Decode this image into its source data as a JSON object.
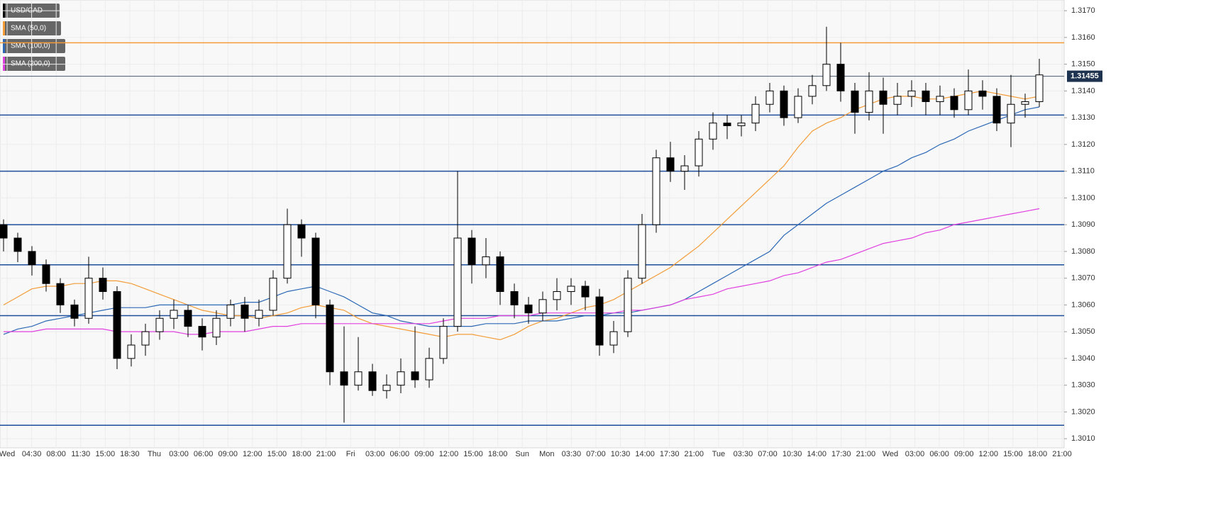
{
  "chart_data": {
    "type": "candlestick",
    "series": [
      {
        "name": "USD/CAD",
        "color": "#000000",
        "open": [
          1.309,
          1.3085,
          1.308,
          1.3075,
          1.3068,
          1.306,
          1.3055,
          1.307,
          1.3065,
          1.304,
          1.3045,
          1.305,
          1.3055,
          1.3058,
          1.3052,
          1.3048,
          1.3055,
          1.306,
          1.3055,
          1.3058,
          1.307,
          1.309,
          1.3085,
          1.306,
          1.3035,
          1.303,
          1.3035,
          1.3028,
          1.303,
          1.3035,
          1.3032,
          1.304,
          1.3052,
          1.3085,
          1.3075,
          1.3078,
          1.3065,
          1.306,
          1.3057,
          1.3062,
          1.3065,
          1.3067,
          1.3063,
          1.3045,
          1.305,
          1.307,
          1.309,
          1.3115,
          1.311,
          1.3112,
          1.3122,
          1.3128,
          1.3127,
          1.3128,
          1.3135,
          1.314,
          1.313,
          1.3138,
          1.3142,
          1.315,
          1.314,
          1.3132,
          1.314,
          1.3135,
          1.3138,
          1.314,
          1.3136,
          1.3138,
          1.3133,
          1.314,
          1.3138,
          1.3128,
          1.3135,
          1.3136
        ],
        "high": [
          1.3092,
          1.3087,
          1.3082,
          1.3077,
          1.307,
          1.3062,
          1.3078,
          1.3074,
          1.3067,
          1.3049,
          1.3053,
          1.3058,
          1.3062,
          1.306,
          1.3055,
          1.3058,
          1.3062,
          1.3063,
          1.3062,
          1.3073,
          1.3096,
          1.3092,
          1.3087,
          1.3062,
          1.3052,
          1.3048,
          1.3038,
          1.3034,
          1.304,
          1.3052,
          1.3044,
          1.3055,
          1.311,
          1.3088,
          1.3085,
          1.308,
          1.3068,
          1.3063,
          1.3065,
          1.307,
          1.307,
          1.3069,
          1.3066,
          1.3054,
          1.3073,
          1.3094,
          1.3118,
          1.3121,
          1.3116,
          1.3125,
          1.3132,
          1.3131,
          1.3131,
          1.3138,
          1.3143,
          1.3142,
          1.3141,
          1.3146,
          1.3164,
          1.3158,
          1.3143,
          1.3147,
          1.3145,
          1.3143,
          1.3144,
          1.3143,
          1.3142,
          1.3141,
          1.3148,
          1.3144,
          1.3141,
          1.3146,
          1.3139,
          1.3152
        ],
        "low": [
          1.308,
          1.3076,
          1.3071,
          1.3065,
          1.3057,
          1.3052,
          1.3053,
          1.3062,
          1.3036,
          1.3037,
          1.3041,
          1.3047,
          1.3051,
          1.3048,
          1.3043,
          1.3045,
          1.3052,
          1.305,
          1.3052,
          1.3056,
          1.3068,
          1.3078,
          1.3055,
          1.303,
          1.3016,
          1.3028,
          1.3026,
          1.3025,
          1.3027,
          1.3029,
          1.3029,
          1.3038,
          1.305,
          1.3068,
          1.307,
          1.306,
          1.3055,
          1.3053,
          1.3054,
          1.3058,
          1.306,
          1.3058,
          1.3041,
          1.3042,
          1.3048,
          1.3068,
          1.3087,
          1.3106,
          1.3103,
          1.3108,
          1.3118,
          1.3122,
          1.3123,
          1.3125,
          1.3132,
          1.3127,
          1.3128,
          1.3135,
          1.314,
          1.3136,
          1.3124,
          1.3129,
          1.3124,
          1.3131,
          1.3134,
          1.3131,
          1.3131,
          1.313,
          1.3131,
          1.3133,
          1.3125,
          1.3119,
          1.313,
          1.3134
        ],
        "close": [
          1.3085,
          1.308,
          1.3075,
          1.3068,
          1.306,
          1.3055,
          1.307,
          1.3065,
          1.304,
          1.3045,
          1.305,
          1.3055,
          1.3058,
          1.3052,
          1.3048,
          1.3055,
          1.306,
          1.3055,
          1.3058,
          1.307,
          1.309,
          1.3085,
          1.306,
          1.3035,
          1.303,
          1.3035,
          1.3028,
          1.303,
          1.3035,
          1.3032,
          1.304,
          1.3052,
          1.3085,
          1.3075,
          1.3078,
          1.3065,
          1.306,
          1.3057,
          1.3062,
          1.3065,
          1.3067,
          1.3063,
          1.3045,
          1.305,
          1.307,
          1.309,
          1.3115,
          1.311,
          1.3112,
          1.3122,
          1.3128,
          1.3127,
          1.3128,
          1.3135,
          1.314,
          1.313,
          1.3138,
          1.3142,
          1.315,
          1.314,
          1.3132,
          1.314,
          1.3135,
          1.3138,
          1.314,
          1.3136,
          1.3138,
          1.3133,
          1.314,
          1.3138,
          1.3128,
          1.3135,
          1.3136,
          1.3146
        ]
      }
    ],
    "lines": [
      {
        "name": "SMA (50,0)",
        "color": "#f39c38",
        "values": [
          1.306,
          1.3063,
          1.3066,
          1.3067,
          1.3067,
          1.3068,
          1.3068,
          1.3069,
          1.3069,
          1.3068,
          1.3066,
          1.3064,
          1.3062,
          1.306,
          1.3058,
          1.3057,
          1.3056,
          1.3056,
          1.3055,
          1.3056,
          1.3057,
          1.3059,
          1.306,
          1.3059,
          1.3058,
          1.3055,
          1.3053,
          1.3052,
          1.3051,
          1.305,
          1.3049,
          1.3048,
          1.3049,
          1.3049,
          1.3048,
          1.3047,
          1.3049,
          1.3052,
          1.3054,
          1.3055,
          1.3057,
          1.3059,
          1.306,
          1.3062,
          1.3065,
          1.3068,
          1.3071,
          1.3074,
          1.3078,
          1.3082,
          1.3087,
          1.3092,
          1.3097,
          1.3102,
          1.3107,
          1.3112,
          1.3119,
          1.3125,
          1.3128,
          1.313,
          1.3133,
          1.3135,
          1.3137,
          1.3138,
          1.3138,
          1.3137,
          1.3137,
          1.3138,
          1.3139,
          1.314,
          1.3139,
          1.3138,
          1.3137,
          1.3138
        ]
      },
      {
        "name": "SMA (100,0)",
        "color": "#2c68b5",
        "values": [
          1.3049,
          1.3051,
          1.3052,
          1.3054,
          1.3055,
          1.3056,
          1.3057,
          1.3058,
          1.3059,
          1.3059,
          1.3059,
          1.306,
          1.306,
          1.306,
          1.306,
          1.306,
          1.306,
          1.3061,
          1.3061,
          1.3063,
          1.3065,
          1.3066,
          1.3067,
          1.3065,
          1.3063,
          1.306,
          1.3057,
          1.3056,
          1.3054,
          1.3053,
          1.3052,
          1.3052,
          1.3052,
          1.3052,
          1.3053,
          1.3053,
          1.3053,
          1.3054,
          1.3054,
          1.3054,
          1.3055,
          1.3056,
          1.3056,
          1.3057,
          1.3057,
          1.3058,
          1.3059,
          1.306,
          1.3062,
          1.3065,
          1.3068,
          1.3071,
          1.3074,
          1.3077,
          1.308,
          1.3086,
          1.309,
          1.3094,
          1.3098,
          1.3101,
          1.3104,
          1.3107,
          1.311,
          1.3112,
          1.3115,
          1.3117,
          1.312,
          1.3122,
          1.3125,
          1.3127,
          1.3129,
          1.3131,
          1.3133,
          1.3134
        ]
      },
      {
        "name": "SMA (200,0)",
        "color": "#e040e0",
        "values": [
          1.305,
          1.305,
          1.305,
          1.3051,
          1.3051,
          1.3051,
          1.3051,
          1.3051,
          1.305,
          1.305,
          1.305,
          1.305,
          1.305,
          1.3049,
          1.3049,
          1.305,
          1.305,
          1.305,
          1.3051,
          1.3052,
          1.3052,
          1.3053,
          1.3053,
          1.3053,
          1.3053,
          1.3053,
          1.3053,
          1.3053,
          1.3053,
          1.3053,
          1.3053,
          1.3054,
          1.3055,
          1.3055,
          1.3055,
          1.3056,
          1.3056,
          1.3056,
          1.3057,
          1.3057,
          1.3057,
          1.3057,
          1.3057,
          1.3057,
          1.3058,
          1.3058,
          1.3059,
          1.306,
          1.3062,
          1.3063,
          1.3064,
          1.3066,
          1.3067,
          1.3068,
          1.3069,
          1.3071,
          1.3072,
          1.3074,
          1.3076,
          1.3077,
          1.3079,
          1.3081,
          1.3083,
          1.3084,
          1.3085,
          1.3087,
          1.3088,
          1.309,
          1.3091,
          1.3092,
          1.3093,
          1.3094,
          1.3095,
          1.3096
        ]
      }
    ],
    "hlines": [
      {
        "value": 1.3158,
        "color": "#f39c38"
      },
      {
        "value": 1.3131,
        "color": "#1f4e9a"
      },
      {
        "value": 1.311,
        "color": "#1f4e9a"
      },
      {
        "value": 1.309,
        "color": "#1f4e9a"
      },
      {
        "value": 1.3075,
        "color": "#1f4e9a"
      },
      {
        "value": 1.3056,
        "color": "#1f4e9a"
      },
      {
        "value": 1.3015,
        "color": "#1f4e9a"
      }
    ],
    "last_price": 1.31455,
    "ylim": [
      1.30066,
      1.3174
    ],
    "yticks": [
      {
        "value": 1.301,
        "label": "1.3010"
      },
      {
        "value": 1.302,
        "label": "1.3020"
      },
      {
        "value": 1.303,
        "label": "1.3030"
      },
      {
        "value": 1.304,
        "label": "1.3040"
      },
      {
        "value": 1.305,
        "label": "1.3050"
      },
      {
        "value": 1.306,
        "label": "1.3060"
      },
      {
        "value": 1.307,
        "label": "1.3070"
      },
      {
        "value": 1.308,
        "label": "1.3080"
      },
      {
        "value": 1.309,
        "label": "1.3090"
      },
      {
        "value": 1.31,
        "label": "1.3100"
      },
      {
        "value": 1.311,
        "label": "1.3110"
      },
      {
        "value": 1.312,
        "label": "1.3120"
      },
      {
        "value": 1.313,
        "label": "1.3130"
      },
      {
        "value": 1.314,
        "label": "1.3140"
      },
      {
        "value": 1.315,
        "label": "1.3150"
      },
      {
        "value": 1.316,
        "label": "1.3160"
      },
      {
        "value": 1.317,
        "label": "1.3170"
      }
    ],
    "xtick_labels": [
      "Wed",
      "04:30",
      "08:00",
      "11:30",
      "15:00",
      "18:30",
      "Thu",
      "03:00",
      "06:00",
      "09:00",
      "12:00",
      "15:00",
      "18:00",
      "21:00",
      "Fri",
      "03:00",
      "06:00",
      "09:00",
      "12:00",
      "15:00",
      "18:00",
      "Sun",
      "Mon",
      "03:30",
      "07:00",
      "10:30",
      "14:00",
      "17:30",
      "21:00",
      "Tue",
      "03:30",
      "07:00",
      "10:30",
      "14:00",
      "17:30",
      "21:00",
      "Wed",
      "03:00",
      "06:00",
      "09:00",
      "12:00",
      "15:00",
      "18:00",
      "21:00"
    ],
    "grid": true
  }
}
